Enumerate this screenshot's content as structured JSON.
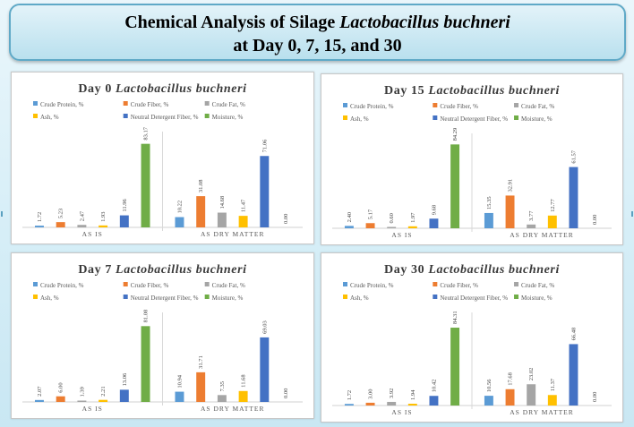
{
  "title": {
    "line1_prefix": "Chemical Analysis of Silage",
    "line1_italic": "Lactobacillus buchneri",
    "line2": "at Day 0, 7, 15, and 30"
  },
  "colors": {
    "crude_protein": "#5b9bd5",
    "crude_fiber": "#ed7d31",
    "crude_fat": "#a5a5a5",
    "ash": "#ffc000",
    "ndf": "#4472c4",
    "moisture": "#70ad47"
  },
  "chart_data": [
    {
      "type": "bar",
      "title": "Day 0 Lactobacillus buchneri",
      "title_prefix": "Day 0",
      "title_italic": "Lactobacillus buchneri",
      "categories": [
        "AS IS",
        "AS DRY MATTER"
      ],
      "legend": [
        "Crude Protein, %",
        "Crude Fiber, %",
        "Crude Fat, %",
        "Ash, %",
        "Neutral Detergent Fiber, %",
        "Moisture, %"
      ],
      "series": [
        {
          "name": "Crude Protein, %",
          "values": [
            1.72,
            10.22
          ],
          "labels": [
            "1.72",
            "10.22"
          ]
        },
        {
          "name": "Crude Fiber, %",
          "values": [
            5.23,
            31.08
          ],
          "labels": [
            "5.23",
            "31.08"
          ]
        },
        {
          "name": "Crude Fat, %",
          "values": [
            2.47,
            14.68
          ],
          "labels": [
            "2.47",
            "14.68"
          ]
        },
        {
          "name": "Ash, %",
          "values": [
            1.93,
            11.47
          ],
          "labels": [
            "1.93",
            "11.47"
          ]
        },
        {
          "name": "Neutral Detergent Fiber, %",
          "values": [
            11.96,
            71.06
          ],
          "labels": [
            "11.96",
            "71.06"
          ]
        },
        {
          "name": "Moisture, %",
          "values": [
            83.17,
            0
          ],
          "labels": [
            "83.17",
            "0.00"
          ]
        }
      ],
      "ylim": [
        0,
        90
      ],
      "legend_position": "top",
      "grid": false
    },
    {
      "type": "bar",
      "title": "Day 15 Lactobacillus buchneri",
      "title_prefix": "Day 15",
      "title_italic": "Lactobacillus buchneri",
      "categories": [
        "AS IS",
        "AS DRY MATTER"
      ],
      "legend": [
        "Crude Protein, %",
        "Crude Fiber, %",
        "Crude Fat, %",
        "Ash, %",
        "Neutral Detergent Fiber, %",
        "Moisture, %"
      ],
      "series": [
        {
          "name": "Crude Protein, %",
          "values": [
            2.4,
            15.35
          ],
          "labels": [
            "2.40",
            "15.35"
          ]
        },
        {
          "name": "Crude Fiber, %",
          "values": [
            5.17,
            32.91
          ],
          "labels": [
            "5.17",
            "32.91"
          ]
        },
        {
          "name": "Crude Fat, %",
          "values": [
            0.6,
            3.77
          ],
          "labels": [
            "0.60",
            "3.77"
          ]
        },
        {
          "name": "Ash, %",
          "values": [
            1.97,
            12.77
          ],
          "labels": [
            "1.97",
            "12.77"
          ]
        },
        {
          "name": "Neutral Detergent Fiber, %",
          "values": [
            9.68,
            61.57
          ],
          "labels": [
            "9.68",
            "61.57"
          ]
        },
        {
          "name": "Moisture, %",
          "values": [
            84.29,
            0
          ],
          "labels": [
            "84.29",
            "0.00"
          ]
        }
      ],
      "ylim": [
        0,
        90
      ],
      "legend_position": "top",
      "grid": false
    },
    {
      "type": "bar",
      "title": "Day 7 Lactobacillus buchneri",
      "title_prefix": "Day 7",
      "title_italic": "Lactobacillus buchneri",
      "categories": [
        "AS IS",
        "AS DRY MATTER"
      ],
      "legend": [
        "Crude Protein, %",
        "Crude Fiber, %",
        "Crude Fat, %",
        "Ash, %",
        "Neutral Detergent Fiber, %",
        "Moisture, %"
      ],
      "series": [
        {
          "name": "Crude Protein, %",
          "values": [
            2.07,
            10.94
          ],
          "labels": [
            "2.07",
            "10.94"
          ]
        },
        {
          "name": "Crude Fiber, %",
          "values": [
            6.0,
            31.71
          ],
          "labels": [
            "6.00",
            "31.71"
          ]
        },
        {
          "name": "Crude Fat, %",
          "values": [
            1.39,
            7.35
          ],
          "labels": [
            "1.39",
            "7.35"
          ]
        },
        {
          "name": "Ash, %",
          "values": [
            2.21,
            11.68
          ],
          "labels": [
            "2.21",
            "11.68"
          ]
        },
        {
          "name": "Neutral Detergent Fiber, %",
          "values": [
            13.06,
            69.03
          ],
          "labels": [
            "13.06",
            "69.03"
          ]
        },
        {
          "name": "Moisture, %",
          "values": [
            81.08,
            0
          ],
          "labels": [
            "81.08",
            "0.00"
          ]
        }
      ],
      "ylim": [
        0,
        90
      ],
      "legend_position": "top",
      "grid": false
    },
    {
      "type": "bar",
      "title": "Day 30 Lactobacillus buchneri",
      "title_prefix": "Day 30",
      "title_italic": "Lactobacillus buchneri",
      "categories": [
        "AS IS",
        "AS DRY MATTER"
      ],
      "legend": [
        "Crude Protein, %",
        "Crude Fiber, %",
        "Crude Fat, %",
        "Ash, %",
        "Neutral Detergent Fiber, %",
        "Moisture, %"
      ],
      "series": [
        {
          "name": "Crude Protein, %",
          "values": [
            1.72,
            10.56
          ],
          "labels": [
            "1.72",
            "10.56"
          ]
        },
        {
          "name": "Crude Fiber, %",
          "values": [
            3.0,
            17.68
          ],
          "labels": [
            "3.00",
            "17.68"
          ]
        },
        {
          "name": "Crude Fat, %",
          "values": [
            3.92,
            23.02
          ],
          "labels": [
            "3.92",
            "23.02"
          ]
        },
        {
          "name": "Ash, %",
          "values": [
            1.94,
            11.37
          ],
          "labels": [
            "1.94",
            "11.37"
          ]
        },
        {
          "name": "Neutral Detergent Fiber, %",
          "values": [
            10.42,
            66.48
          ],
          "labels": [
            "10.42",
            "66.48"
          ]
        },
        {
          "name": "Moisture, %",
          "values": [
            84.31,
            0
          ],
          "labels": [
            "84.31",
            "0.00"
          ]
        }
      ],
      "ylim": [
        0,
        95
      ],
      "legend_position": "top",
      "grid": false
    }
  ]
}
